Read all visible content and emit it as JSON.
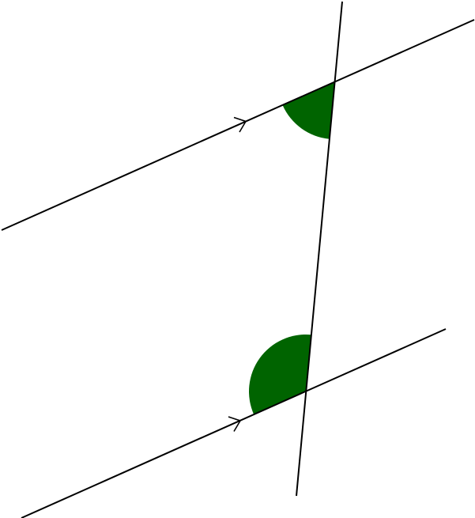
{
  "diagram": {
    "description_type": "parallel-lines-cut-by-transversal",
    "colors": {
      "line": "#000000",
      "angle_fill": "#006400",
      "background": "#ffffff"
    },
    "parallel_marker": "single-arrow",
    "marked_angles": [
      "upper-intersection-angle",
      "lower-intersection-angle"
    ]
  }
}
